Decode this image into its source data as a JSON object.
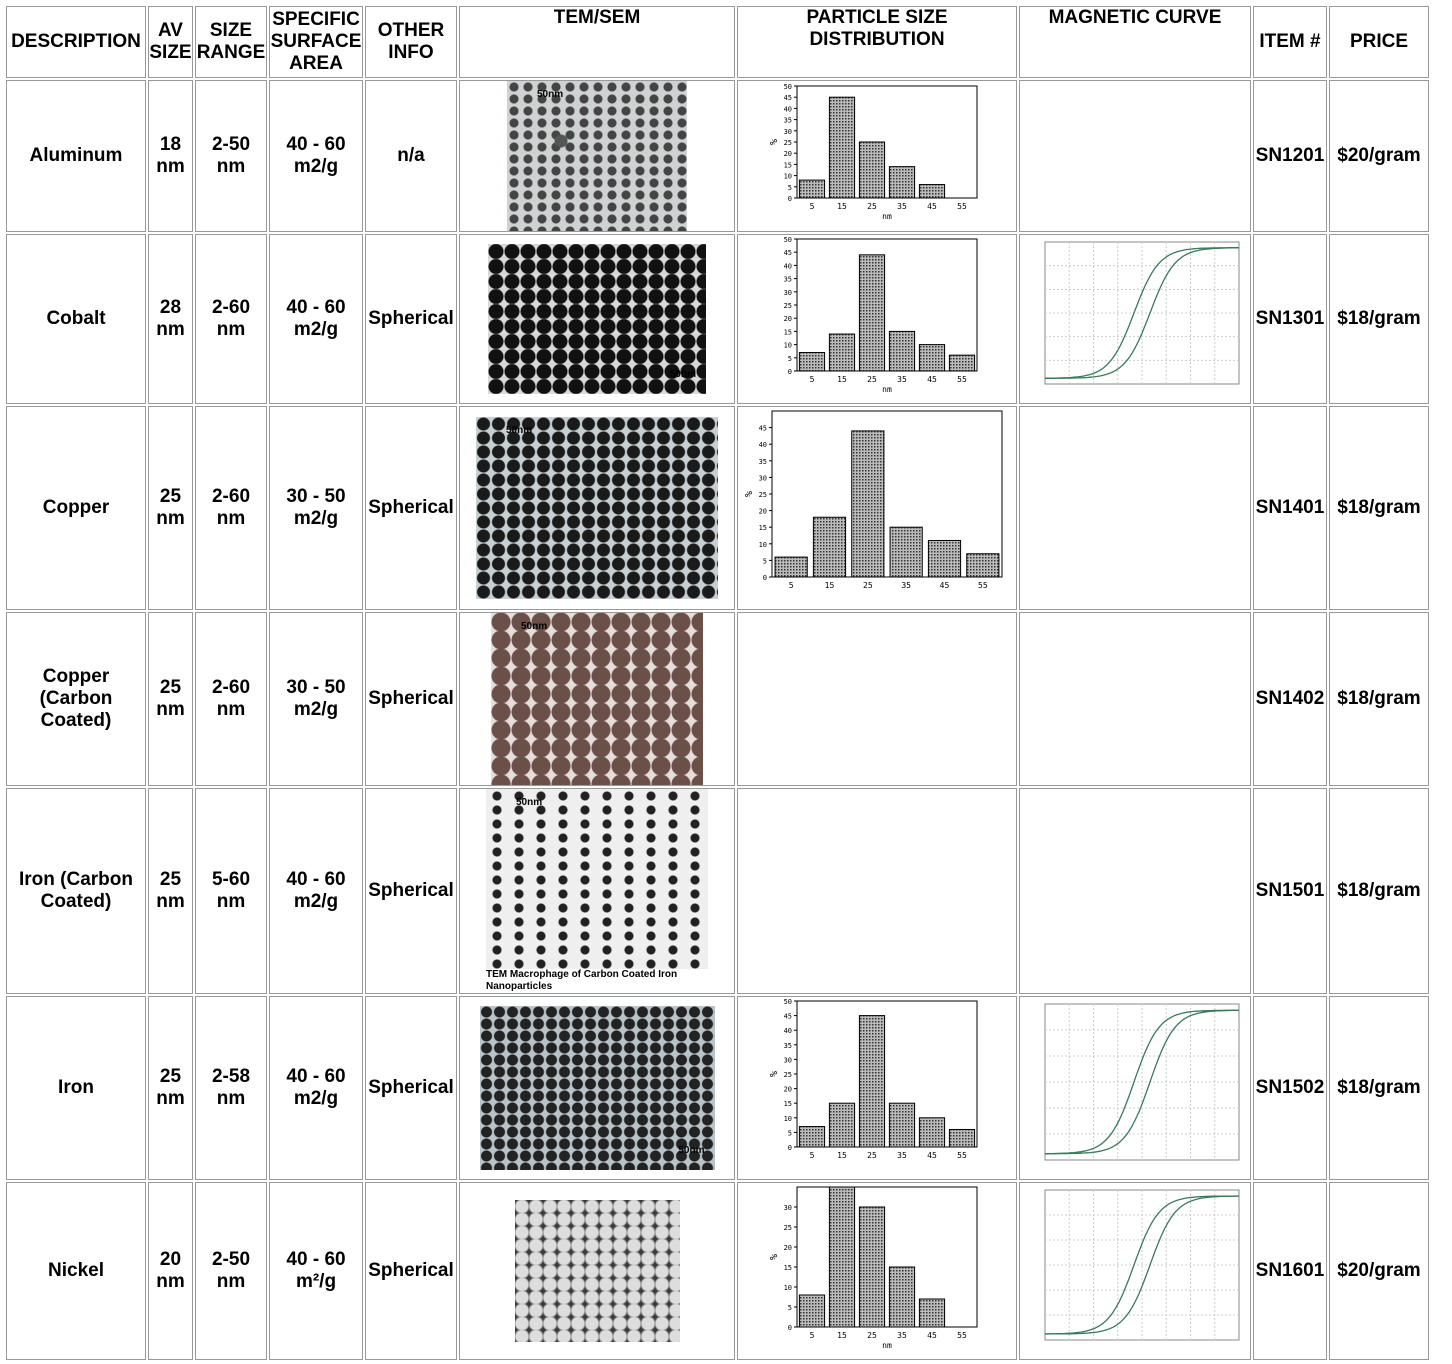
{
  "table": {
    "headers": [
      "DESCRIPTION",
      "AV SIZE",
      "SIZE RANGE",
      "SPECIFIC SURFACE AREA",
      "OTHER INFO",
      "TEM/SEM",
      "PARTICLE SIZE DISTRIBUTION",
      "MAGNETIC CURVE",
      "ITEM #",
      "PRICE"
    ],
    "rows": [
      {
        "description": "Aluminum",
        "av_size": "18 nm",
        "size_range": "2-50 nm",
        "surface_area": "40 - 60 m2/g",
        "other_info": "n/a",
        "tem_label": "50nm",
        "distribution": {
          "type": "bar",
          "categories": [
            "5",
            "15",
            "25",
            "35",
            "45",
            "55"
          ],
          "values": [
            8,
            45,
            25,
            14,
            6,
            null
          ],
          "ylim": [
            0,
            50
          ],
          "yticks": [
            0,
            5,
            10,
            15,
            20,
            25,
            30,
            35,
            40,
            45,
            50
          ],
          "xlabel": "nm",
          "ylabel": "%"
        },
        "item": "SN1201",
        "price": "$20/gram"
      },
      {
        "description": "Cobalt",
        "av_size": "28 nm",
        "size_range": "2-60 nm",
        "surface_area": "40 - 60 m2/g",
        "other_info": "Spherical",
        "tem_label": "50nm",
        "distribution": {
          "type": "bar",
          "categories": [
            "5",
            "15",
            "25",
            "35",
            "45",
            "55"
          ],
          "values": [
            7,
            14,
            44,
            15,
            10,
            6
          ],
          "ylim": [
            0,
            50
          ],
          "yticks": [
            0,
            5,
            10,
            15,
            20,
            25,
            30,
            35,
            40,
            45,
            50
          ],
          "xlabel": "nm"
        },
        "magnetic": true,
        "item": "SN1301",
        "price": "$18/gram"
      },
      {
        "description": "Copper",
        "av_size": "25 nm",
        "size_range": "2-60 nm",
        "surface_area": "30 - 50 m2/g",
        "other_info": "Spherical",
        "tem_label": "50nm",
        "distribution": {
          "type": "bar",
          "categories": [
            "5",
            "15",
            "25",
            "35",
            "45",
            "55"
          ],
          "values": [
            6,
            18,
            44,
            15,
            11,
            7
          ],
          "ylim": [
            0,
            50
          ],
          "yticks": [
            0,
            5,
            10,
            15,
            20,
            25,
            30,
            35,
            40,
            45
          ],
          "ylabel": "%"
        },
        "item": "SN1401",
        "price": "$18/gram"
      },
      {
        "description": "Copper (Carbon Coated)",
        "av_size": "25 nm",
        "size_range": "2-60 nm",
        "surface_area": "30 - 50 m2/g",
        "other_info": "Spherical",
        "tem_label": "50nm",
        "item": "SN1402",
        "price": "$18/gram"
      },
      {
        "description": "Iron (Carbon Coated)",
        "av_size": "25 nm",
        "size_range": "5-60 nm",
        "surface_area": "40 - 60 m2/g",
        "other_info": "Spherical",
        "tem_label": "50nm",
        "tem_caption": "TEM Macrophage of Carbon Coated Iron Nanoparticles",
        "item": "SN1501",
        "price": "$18/gram"
      },
      {
        "description": "Iron",
        "av_size": "25 nm",
        "size_range": "2-58 nm",
        "surface_area": "40 - 60 m2/g",
        "other_info": "Spherical",
        "tem_label": "50nm",
        "distribution": {
          "type": "bar",
          "categories": [
            "5",
            "15",
            "25",
            "35",
            "45",
            "55"
          ],
          "values": [
            7,
            15,
            45,
            15,
            10,
            6
          ],
          "ylim": [
            0,
            50
          ],
          "yticks": [
            0,
            5,
            10,
            15,
            20,
            25,
            30,
            35,
            40,
            45,
            50
          ],
          "ylabel": "%"
        },
        "magnetic": true,
        "item": "SN1502",
        "price": "$18/gram"
      },
      {
        "description": "Nickel",
        "av_size": "20 nm",
        "size_range": "2-50 nm",
        "surface_area": "40 - 60 m²/g",
        "other_info": "Spherical",
        "distribution": {
          "type": "bar",
          "categories": [
            "5",
            "15",
            "25",
            "35",
            "45",
            "55"
          ],
          "values": [
            8,
            35,
            30,
            15,
            7,
            null
          ],
          "ylim": [
            0,
            35
          ],
          "yticks": [
            0,
            5,
            10,
            15,
            20,
            25,
            30
          ],
          "xlabel": "nm",
          "ylabel": "%"
        },
        "magnetic": true,
        "item": "SN1601",
        "price": "$20/gram"
      }
    ]
  }
}
